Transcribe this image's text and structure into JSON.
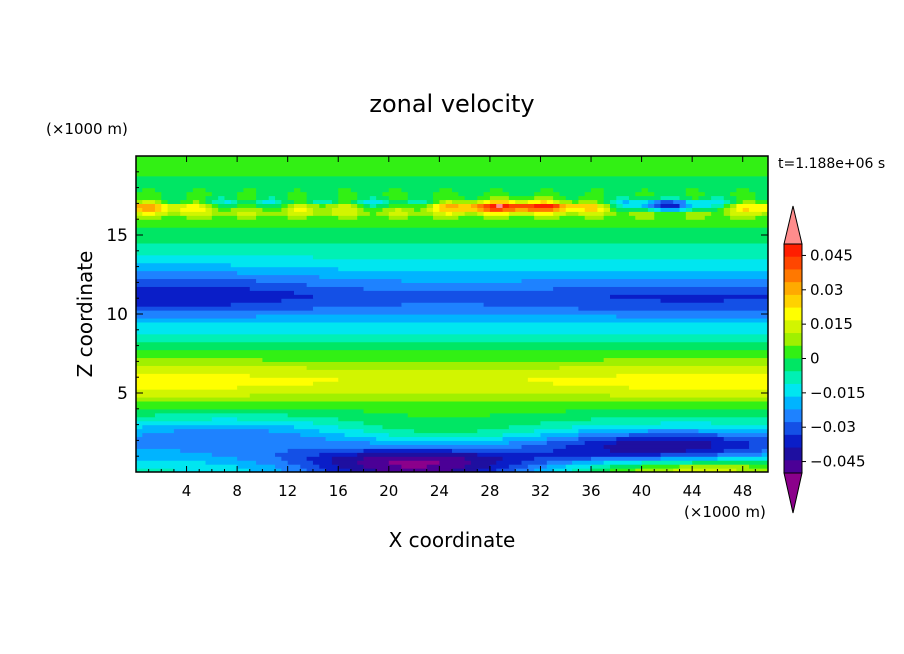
{
  "chart_data": {
    "type": "heatmap",
    "title": "zonal velocity",
    "xlabel": "X coordinate",
    "ylabel": "Z coordinate",
    "x_unit_label": "(×1000 m)",
    "y_unit_label": "(×1000 m)",
    "time_label": "t=1.188e+06 s",
    "xlim": [
      0,
      50
    ],
    "ylim": [
      0,
      20
    ],
    "x_ticks": [
      4,
      8,
      12,
      16,
      20,
      24,
      28,
      32,
      36,
      40,
      44,
      48
    ],
    "y_ticks": [
      5,
      10,
      15
    ],
    "x_tick_labels": [
      "4",
      "8",
      "12",
      "16",
      "20",
      "24",
      "28",
      "32",
      "36",
      "40",
      "44",
      "48"
    ],
    "y_tick_labels": [
      "5",
      "10",
      "15"
    ],
    "colorbar": {
      "levels_min": -0.05,
      "levels_max": 0.05,
      "step": 0.005,
      "tick_values": [
        0.045,
        0.03,
        0.015,
        0,
        -0.015,
        -0.03,
        -0.045
      ],
      "tick_labels": [
        "0.045",
        "0.03",
        "0.015",
        "0",
        "−0.015",
        "−0.03",
        "−0.045"
      ],
      "colors": [
        "#8b008b",
        "#4b0096",
        "#1e0fa0",
        "#0a1ec8",
        "#1450e6",
        "#1e82ff",
        "#00b4ff",
        "#00e6f0",
        "#00f0b4",
        "#00e664",
        "#32f014",
        "#a0f000",
        "#d2f500",
        "#ffff00",
        "#ffd200",
        "#ffaa00",
        "#ff7800",
        "#ff4600",
        "#ff1e00",
        "#ff8c8c"
      ]
    },
    "profile_z": [
      0.3,
      1,
      2,
      2.6,
      3.5,
      4.5,
      5.2,
      5.8,
      6.5,
      7.2,
      8,
      8.7,
      9.5,
      10.5,
      11.2,
      12,
      12.7,
      13.3,
      14,
      14.7,
      15.5,
      16.2,
      16.6,
      16.85,
      17.2,
      18,
      19
    ],
    "profile_u": [
      -0.01,
      -0.018,
      -0.02,
      -0.015,
      -0.005,
      0.005,
      0.013,
      0.016,
      0.011,
      0.003,
      -0.002,
      -0.01,
      -0.015,
      -0.026,
      -0.029,
      -0.022,
      -0.016,
      -0.012,
      -0.008,
      -0.004,
      0,
      0.006,
      0.025,
      0.03,
      0.002,
      -0.002,
      0.001
    ],
    "features": [
      {
        "x": 22,
        "z": 0.4,
        "du": -0.04
      },
      {
        "x": 42,
        "z": 1.3,
        "du": -0.035
      },
      {
        "x": 44,
        "z": 0.3,
        "du": 0.035
      },
      {
        "x": 24,
        "z": 2.5,
        "du": 0.012
      },
      {
        "x": 8,
        "z": 2.5,
        "du": -0.01
      },
      {
        "x": 3,
        "z": 11.5,
        "du": -0.01
      },
      {
        "x": 44,
        "z": 11,
        "du": -0.006
      },
      {
        "x": 30,
        "z": 16.9,
        "du": 0.02
      },
      {
        "x": 42,
        "z": 16.85,
        "du": -0.06
      },
      {
        "x": 9,
        "z": 16.85,
        "du": -0.03
      },
      {
        "x": 20,
        "z": 16.85,
        "du": -0.03
      },
      {
        "x": 2,
        "z": 6,
        "du": 0.004
      },
      {
        "x": 45,
        "z": 6,
        "du": 0.004
      }
    ]
  }
}
